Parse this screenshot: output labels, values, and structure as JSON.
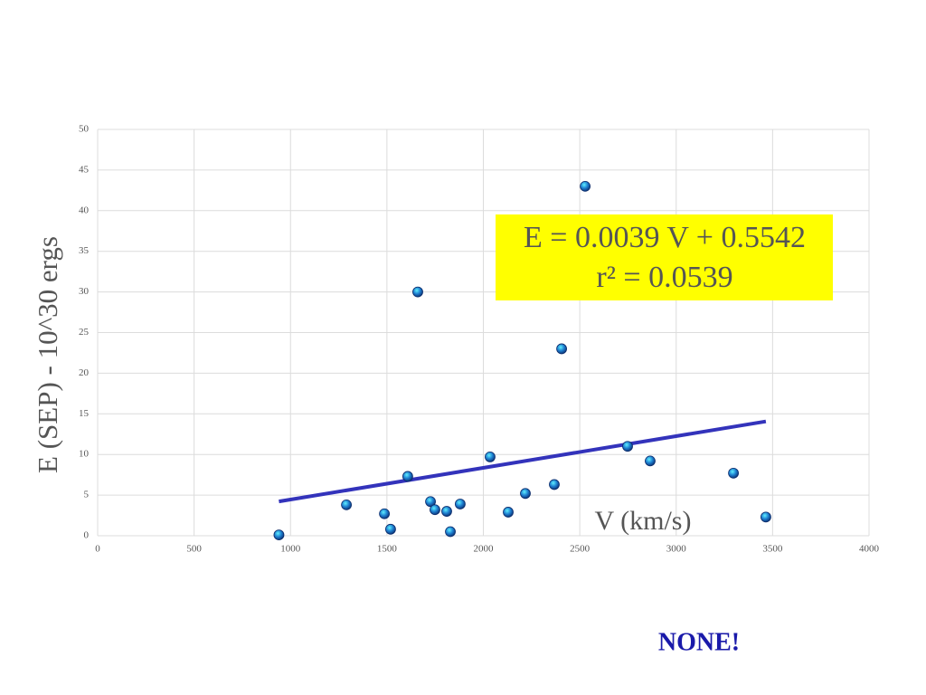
{
  "chart_data": {
    "type": "scatter",
    "x_label": "V (km/s)",
    "y_label": "E (SEP) - 10^30 ergs",
    "x": [
      940,
      1290,
      1487,
      1519,
      1608,
      1660,
      1726,
      1749,
      1810,
      1829,
      1880,
      2035,
      2129,
      2218,
      2368,
      2406,
      2528,
      2748,
      2865,
      3297,
      3465
    ],
    "values": [
      0.1,
      3.8,
      2.7,
      0.8,
      7.3,
      30,
      4.2,
      3.2,
      3.0,
      0.5,
      3.9,
      9.7,
      2.9,
      5.2,
      6.3,
      23,
      43,
      11,
      9.2,
      7.7,
      2.3
    ],
    "color": "#1e7fd0",
    "trendline": {
      "slope": 0.0039,
      "intercept": 0.5542,
      "color": "#3333bb"
    },
    "annotations": [
      "E = 0.0039 V + 0.5542",
      "r² = 0.0539"
    ],
    "note": "NONE!",
    "xlim": [
      0,
      4000
    ],
    "xticks": [
      0,
      500,
      1000,
      1500,
      2000,
      2500,
      3000,
      3500,
      4000
    ],
    "ylim": [
      0,
      50
    ],
    "yticks": [
      0,
      5,
      10,
      15,
      20,
      25,
      30,
      35,
      40,
      45,
      50
    ],
    "grid": true
  }
}
